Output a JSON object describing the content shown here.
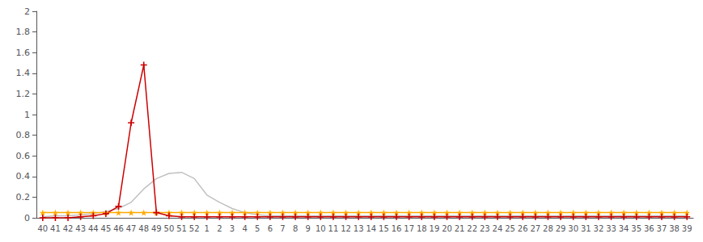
{
  "chart_data": {
    "type": "line",
    "categories": [
      "40",
      "41",
      "42",
      "43",
      "44",
      "45",
      "46",
      "47",
      "48",
      "49",
      "50",
      "51",
      "52",
      "1",
      "2",
      "3",
      "4",
      "5",
      "6",
      "7",
      "8",
      "9",
      "10",
      "11",
      "12",
      "13",
      "14",
      "15",
      "16",
      "17",
      "18",
      "19",
      "20",
      "21",
      "22",
      "23",
      "24",
      "25",
      "26",
      "27",
      "28",
      "29",
      "30",
      "31",
      "32",
      "33",
      "34",
      "35",
      "36",
      "37",
      "38",
      "39"
    ],
    "series": [
      {
        "color": "#c0c0c0",
        "marker": "none",
        "values": [
          0.01,
          0.02,
          0.02,
          0.03,
          0.04,
          0.06,
          0.09,
          0.15,
          0.28,
          0.38,
          0.43,
          0.44,
          0.38,
          0.22,
          0.15,
          0.09,
          0.05,
          0.03,
          0.02,
          0.02,
          0.02,
          0.02,
          0.02,
          0.02,
          0.02,
          0.02,
          0.02,
          0.02,
          0.02,
          0.02,
          0.02,
          0.02,
          0.02,
          0.02,
          0.02,
          0.02,
          0.02,
          0.02,
          0.02,
          0.02,
          0.02,
          0.02,
          0.02,
          0.02,
          0.02,
          0.02,
          0.02,
          0.02,
          0.02,
          0.02,
          0.02,
          0.02
        ]
      },
      {
        "color": "#ffaa00",
        "marker": "star",
        "values": [
          0.05,
          0.05,
          0.05,
          0.05,
          0.05,
          0.05,
          0.05,
          0.05,
          0.05,
          0.05,
          0.05,
          0.05,
          0.05,
          0.05,
          0.05,
          0.05,
          0.05,
          0.05,
          0.05,
          0.05,
          0.05,
          0.05,
          0.05,
          0.05,
          0.05,
          0.05,
          0.05,
          0.05,
          0.05,
          0.05,
          0.05,
          0.05,
          0.05,
          0.05,
          0.05,
          0.05,
          0.05,
          0.05,
          0.05,
          0.05,
          0.05,
          0.05,
          0.05,
          0.05,
          0.05,
          0.05,
          0.05,
          0.05,
          0.05,
          0.05,
          0.05,
          0.05
        ]
      },
      {
        "color": "#cc0000",
        "marker": "plus",
        "values": [
          0.0,
          0.0,
          0.0,
          0.01,
          0.02,
          0.04,
          0.11,
          0.92,
          1.48,
          0.05,
          0.02,
          0.01,
          0.01,
          0.01,
          0.01,
          0.01,
          0.01,
          0.01,
          0.01,
          0.01,
          0.01,
          0.01,
          0.01,
          0.01,
          0.01,
          0.01,
          0.01,
          0.01,
          0.01,
          0.01,
          0.01,
          0.01,
          0.01,
          0.01,
          0.01,
          0.01,
          0.01,
          0.01,
          0.01,
          0.01,
          0.01,
          0.01,
          0.01,
          0.01,
          0.01,
          0.01,
          0.01,
          0.01,
          0.01,
          0.01,
          0.01,
          0.01
        ]
      }
    ],
    "ylim": [
      0,
      2.0
    ],
    "yticks": [
      0,
      0.2,
      0.4,
      0.6,
      0.8,
      1.0,
      1.2,
      1.4,
      1.6,
      1.8,
      2.0
    ],
    "grid": false
  }
}
